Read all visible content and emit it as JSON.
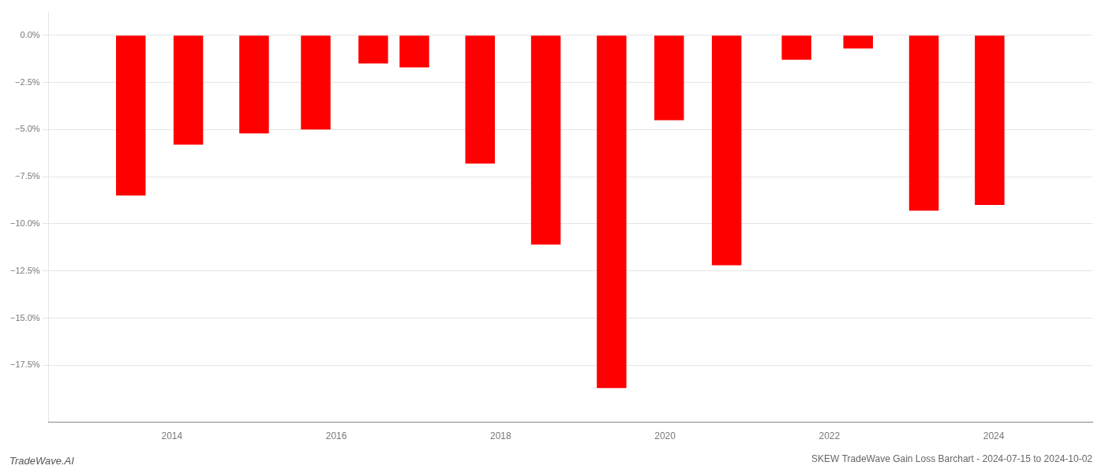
{
  "chart_data": {
    "type": "bar",
    "title": "SKEW TradeWave Gain Loss Barchart - 2024-07-15 to 2024-10-02",
    "annotations": [
      "TradeWave.AI"
    ],
    "x": [
      2013.5,
      2014.2,
      2015.0,
      2015.75,
      2016.45,
      2016.95,
      2017.75,
      2018.55,
      2019.35,
      2020.05,
      2020.75,
      2021.6,
      2022.35,
      2023.15,
      2023.95
    ],
    "values": [
      -8.5,
      -5.8,
      -5.2,
      -5.0,
      -1.5,
      -1.7,
      -6.8,
      -11.1,
      -18.7,
      -4.5,
      -12.2,
      -1.3,
      -0.7,
      -9.3,
      -9.0
    ],
    "color": "#ff0000",
    "xlim": [
      2012.5,
      2025.2
    ],
    "xticks": [
      2014,
      2016,
      2018,
      2020,
      2022,
      2024
    ],
    "ylim": [
      -20.5,
      1.2
    ],
    "yticks": [
      {
        "value": 0.0,
        "label": "0.0%"
      },
      {
        "value": -2.5,
        "label": "−2.5%"
      },
      {
        "value": -5.0,
        "label": "−5.0%"
      },
      {
        "value": -7.5,
        "label": "−7.5%"
      },
      {
        "value": -10.0,
        "label": "−10.0%"
      },
      {
        "value": -12.5,
        "label": "−12.5%"
      },
      {
        "value": -15.0,
        "label": "−15.0%"
      },
      {
        "value": -17.5,
        "label": "−17.5%"
      }
    ],
    "grid": true
  }
}
